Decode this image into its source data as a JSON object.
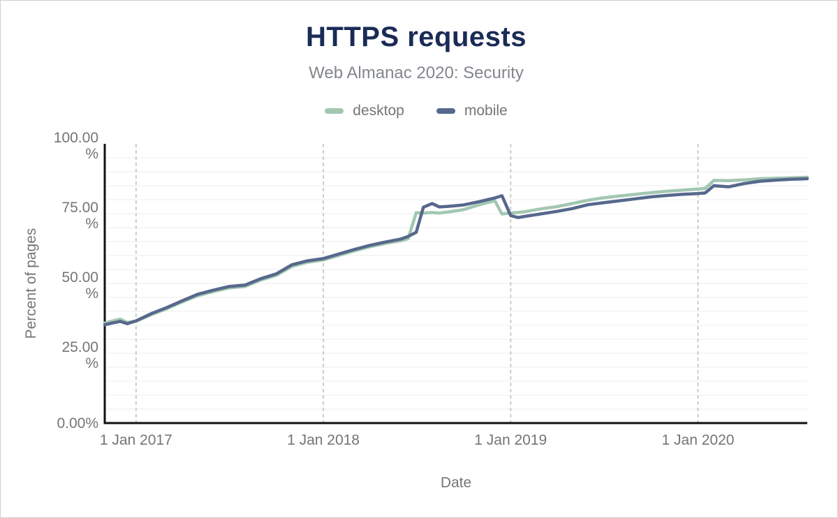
{
  "header": {
    "title": "HTTPS requests",
    "subtitle": "Web Almanac 2020: Security"
  },
  "chart_data": {
    "type": "line",
    "title": "HTTPS requests",
    "subtitle": "Web Almanac 2020: Security",
    "xlabel": "Date",
    "ylabel": "Percent of pages",
    "ylim": [
      0,
      100
    ],
    "grid": {
      "horizontal_step_pct": 5,
      "vertical": "dashed at each 1 Jan"
    },
    "legend_position": "top",
    "colors": {
      "axis": "#111111",
      "grid_minor": "#f1f1f1",
      "grid_vertical": "#cccccc",
      "label_gray": "#757575"
    },
    "y_ticks": [
      {
        "value": 0,
        "lines": [
          "0.00%"
        ]
      },
      {
        "value": 25,
        "lines": [
          "25.00",
          "%"
        ]
      },
      {
        "value": 50,
        "lines": [
          "50.00",
          "%"
        ]
      },
      {
        "value": 75,
        "lines": [
          "75.00",
          "%"
        ]
      },
      {
        "value": 100,
        "lines": [
          "100.00",
          "%"
        ]
      }
    ],
    "x_ticks": [
      {
        "date": "2017-01-01",
        "label": "1 Jan 2017"
      },
      {
        "date": "2018-01-01",
        "label": "1 Jan 2018"
      },
      {
        "date": "2019-01-01",
        "label": "1 Jan 2019"
      },
      {
        "date": "2020-01-01",
        "label": "1 Jan 2020"
      }
    ],
    "x": [
      "2016-11-01",
      "2016-11-15",
      "2016-12-01",
      "2016-12-15",
      "2017-01-01",
      "2017-02-01",
      "2017-03-01",
      "2017-04-01",
      "2017-05-01",
      "2017-06-01",
      "2017-07-01",
      "2017-08-01",
      "2017-09-01",
      "2017-10-01",
      "2017-11-01",
      "2017-12-01",
      "2018-01-01",
      "2018-02-01",
      "2018-03-01",
      "2018-04-01",
      "2018-05-01",
      "2018-06-01",
      "2018-06-15",
      "2018-07-01",
      "2018-07-15",
      "2018-08-01",
      "2018-08-15",
      "2018-09-01",
      "2018-10-01",
      "2018-11-01",
      "2018-12-01",
      "2018-12-15",
      "2019-01-01",
      "2019-01-15",
      "2019-02-01",
      "2019-03-01",
      "2019-04-01",
      "2019-05-01",
      "2019-06-01",
      "2019-07-01",
      "2019-08-01",
      "2019-09-01",
      "2019-10-01",
      "2019-11-01",
      "2019-12-01",
      "2020-01-01",
      "2020-01-15",
      "2020-02-01",
      "2020-03-01",
      "2020-04-01",
      "2020-05-01",
      "2020-06-01",
      "2020-07-01",
      "2020-08-01"
    ],
    "series": [
      {
        "name": "desktop",
        "color": "#a2c7b1",
        "values": [
          35.8,
          36.5,
          37.2,
          36.0,
          36.5,
          38.9,
          40.9,
          43.4,
          45.6,
          47.1,
          48.4,
          48.9,
          51.2,
          52.9,
          56.1,
          57.6,
          58.4,
          60.1,
          61.6,
          63.1,
          64.3,
          65.3,
          66.0,
          75.3,
          75.2,
          75.4,
          75.2,
          75.6,
          76.4,
          78.2,
          79.6,
          74.9,
          75.2,
          75.4,
          75.8,
          76.7,
          77.5,
          78.6,
          79.8,
          80.7,
          81.3,
          81.9,
          82.5,
          83.0,
          83.4,
          83.8,
          84.0,
          86.9,
          86.8,
          87.1,
          87.5,
          87.7,
          87.8,
          88.0
        ],
        "values_unit": "%"
      },
      {
        "name": "mobile",
        "color": "#56688c",
        "values": [
          35.2,
          35.8,
          36.4,
          35.6,
          36.6,
          39.3,
          41.3,
          43.8,
          46.1,
          47.6,
          48.9,
          49.4,
          51.7,
          53.4,
          56.7,
          58.1,
          58.9,
          60.6,
          62.1,
          63.6,
          64.8,
          65.9,
          66.8,
          68.3,
          77.3,
          78.6,
          77.4,
          77.6,
          78.1,
          79.3,
          80.6,
          81.4,
          74.3,
          73.6,
          74.1,
          74.9,
          75.8,
          76.8,
          78.2,
          78.9,
          79.6,
          80.3,
          81.0,
          81.5,
          81.9,
          82.2,
          82.4,
          85.0,
          84.6,
          85.8,
          86.6,
          87.0,
          87.3,
          87.5
        ],
        "values_unit": "%"
      }
    ]
  }
}
